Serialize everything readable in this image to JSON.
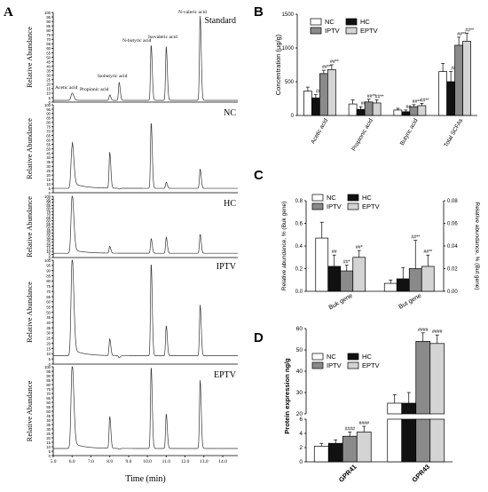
{
  "panels": {
    "a": "A",
    "b": "B",
    "c": "C",
    "d": "D"
  },
  "panel_a": {
    "ylabel": "Relative Abundance",
    "xlabel": "Time (min)",
    "samples": [
      "Standard",
      "NC",
      "HC",
      "IPTV",
      "EPTV"
    ],
    "peak_labels": [
      "Acetic acid",
      "Propionic acid",
      "Isobutyric acid",
      "N-butyric acid",
      "Isovaleric acid",
      "N-valeric acid"
    ],
    "yticks": [
      "100",
      "95",
      "90",
      "85",
      "80",
      "75",
      "70",
      "65",
      "60",
      "55",
      "50",
      "45",
      "40",
      "35",
      "30",
      "25",
      "20",
      "15",
      "10",
      "5",
      "0"
    ],
    "xticks": [
      "5.0",
      "6.0",
      "7.0",
      "8.0",
      "9.0",
      "10.0",
      "11.0",
      "12.0",
      "13.0",
      "14.0"
    ]
  },
  "chart_data": [
    {
      "type": "line",
      "panel": "A",
      "xlabel": "Time (min)",
      "ylabel": "Relative Abundance",
      "xlim": [
        5.0,
        14.8
      ],
      "ylim": [
        0,
        100
      ],
      "peak_times": [
        6.0,
        8.0,
        8.5,
        10.2,
        11.0,
        12.8
      ],
      "series": [
        {
          "name": "Standard",
          "baseline": 2,
          "heights": [
            10,
            8,
            22,
            64,
            62,
            96
          ]
        },
        {
          "name": "NC",
          "baseline": 5,
          "heights": [
            53,
            46,
            4,
            80,
            12,
            27
          ]
        },
        {
          "name": "HC",
          "baseline": 7,
          "heights": [
            100,
            18,
            7,
            31,
            33,
            38
          ]
        },
        {
          "name": "IPTV",
          "baseline": 8,
          "heights": [
            100,
            24,
            6,
            97,
            37,
            57
          ]
        },
        {
          "name": "EPTV",
          "baseline": 8,
          "heights": [
            100,
            44,
            7,
            100,
            47,
            85
          ]
        }
      ]
    },
    {
      "type": "bar",
      "panel": "B",
      "ylabel": "Concentration (μg/g)",
      "categories": [
        "Acetic acid",
        "Propionic acid",
        "Butyric acid",
        "Total SCFAs"
      ],
      "ylim": [
        0,
        1500
      ],
      "yticks": [
        0,
        500,
        1000,
        1500
      ],
      "legend": [
        "NC",
        "HC",
        "IPTV",
        "EPTV"
      ],
      "series": [
        {
          "name": "NC",
          "values": [
            360,
            170,
            80,
            650
          ],
          "errors": [
            60,
            60,
            25,
            120
          ]
        },
        {
          "name": "HC",
          "values": [
            260,
            90,
            55,
            500
          ],
          "errors": [
            50,
            40,
            25,
            150
          ]
        },
        {
          "name": "IPTV",
          "values": [
            620,
            200,
            130,
            1040
          ],
          "errors": [
            50,
            40,
            30,
            120
          ]
        },
        {
          "name": "EPTV",
          "values": [
            680,
            185,
            145,
            1100
          ],
          "errors": [
            70,
            45,
            35,
            120
          ]
        }
      ],
      "annotations": [
        [
          "",
          "##",
          "##**",
          "##**"
        ],
        [
          "",
          "##",
          "##**",
          "##**"
        ],
        [
          "",
          "##",
          "##**",
          "##**"
        ],
        [
          "",
          "##",
          "##**",
          "##**"
        ]
      ]
    },
    {
      "type": "bar",
      "panel": "C",
      "ylabel_left": "Relative abundance, % (Buk gene)",
      "ylabel_right": "Relative abundance, % (But gene)",
      "categories": [
        "Buk gene",
        "But gene"
      ],
      "ylim_left": [
        0,
        0.8
      ],
      "yticks_left": [
        "0.0",
        "0.2",
        "0.4",
        "0.6",
        "0.8"
      ],
      "ylim_right": [
        0,
        0.08
      ],
      "yticks_right": [
        "0.00",
        "0.02",
        "0.04",
        "0.06",
        "0.08"
      ],
      "legend": [
        "NC",
        "HC",
        "IPTV",
        "EPTV"
      ],
      "series": [
        {
          "name": "NC",
          "values": [
            0.47,
            0.007
          ],
          "errors": [
            0.14,
            0.003
          ]
        },
        {
          "name": "HC",
          "values": [
            0.22,
            0.011
          ],
          "errors": [
            0.1,
            0.01
          ]
        },
        {
          "name": "IPTV",
          "values": [
            0.18,
            0.02
          ],
          "errors": [
            0.05,
            0.025
          ]
        },
        {
          "name": "EPTV",
          "values": [
            0.3,
            0.022
          ],
          "errors": [
            0.06,
            0.01
          ]
        }
      ],
      "annotations": [
        [
          "",
          "##",
          "##*",
          "##*"
        ],
        [
          "",
          "",
          "##**",
          "##**"
        ]
      ]
    },
    {
      "type": "bar",
      "panel": "D",
      "ylabel": "Protein expression ng/g",
      "categories": [
        "GPR41",
        "GPR43"
      ],
      "broken_axis": true,
      "yticks_lower": [
        0,
        2,
        4,
        6
      ],
      "yticks_upper": [
        20,
        30,
        40,
        50,
        60
      ],
      "legend": [
        "NC",
        "HC",
        "IPTV",
        "EPTV"
      ],
      "series": [
        {
          "name": "NC",
          "values": [
            2.2,
            25
          ],
          "errors": [
            0.4,
            4
          ]
        },
        {
          "name": "HC",
          "values": [
            2.6,
            25
          ],
          "errors": [
            0.5,
            5
          ]
        },
        {
          "name": "IPTV",
          "values": [
            3.6,
            54
          ],
          "errors": [
            0.6,
            4
          ]
        },
        {
          "name": "EPTV",
          "values": [
            4.2,
            53
          ],
          "errors": [
            0.8,
            4
          ]
        }
      ],
      "annotations": [
        [
          "",
          "",
          "####",
          "####"
        ],
        [
          "",
          "",
          "####",
          "####"
        ]
      ]
    }
  ],
  "colors": {
    "NC": "#ffffff",
    "HC": "#111111",
    "IPTV": "#8a8a8a",
    "EPTV": "#d4d4d4",
    "trace": "#333333"
  }
}
